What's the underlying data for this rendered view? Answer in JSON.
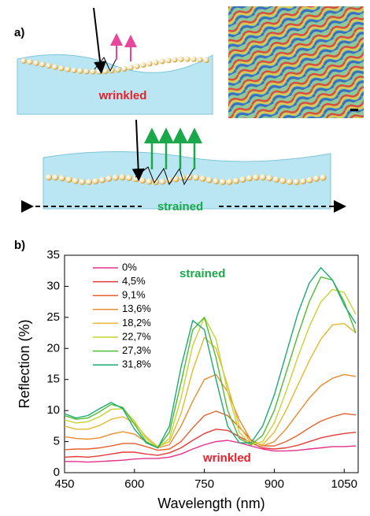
{
  "panel_a": {
    "label": "a)",
    "top_label": "wrinkled",
    "bottom_label": "strained"
  },
  "chart_data": {
    "type": "line",
    "panel_label": "b)",
    "x_label": "Wavelength (nm)",
    "y_label": "Reflection (%)",
    "xlim": [
      450,
      1080
    ],
    "xticks": [
      450,
      600,
      750,
      900,
      1050
    ],
    "ylim": [
      0,
      35
    ],
    "yticks": [
      0,
      5,
      10,
      15,
      20,
      25,
      30,
      35
    ],
    "legend": "upper left",
    "annotations": [
      {
        "text": "strained",
        "color": "#1aa84a"
      },
      {
        "text": "wrinkled",
        "color": "#e8202a"
      }
    ],
    "x": [
      450,
      475,
      500,
      525,
      550,
      575,
      600,
      625,
      650,
      675,
      700,
      725,
      750,
      775,
      800,
      825,
      850,
      875,
      900,
      925,
      950,
      975,
      1000,
      1025,
      1050,
      1075
    ],
    "series": [
      {
        "name": "0%",
        "color": "#e5308c",
        "values": [
          1.8,
          1.8,
          1.7,
          1.8,
          1.9,
          2.0,
          2.2,
          2.3,
          2.3,
          2.5,
          3.0,
          3.8,
          4.5,
          5.0,
          5.2,
          4.8,
          4.3,
          3.8,
          3.5,
          3.5,
          3.6,
          3.8,
          4.0,
          4.2,
          4.2,
          4.3
        ]
      },
      {
        "name": "4,5%",
        "color": "#e63a3a",
        "values": [
          2.5,
          2.6,
          2.5,
          2.7,
          3.0,
          3.3,
          3.3,
          3.0,
          2.8,
          3.2,
          4.0,
          5.2,
          6.3,
          7.0,
          6.8,
          5.8,
          4.8,
          4.0,
          3.8,
          4.0,
          4.4,
          5.0,
          5.6,
          6.0,
          6.3,
          6.5
        ]
      },
      {
        "name": "9,1%",
        "color": "#e8602e",
        "values": [
          3.7,
          3.8,
          3.8,
          4.0,
          4.3,
          4.7,
          4.7,
          4.2,
          3.6,
          3.8,
          5.0,
          7.2,
          9.2,
          9.9,
          9.2,
          7.3,
          5.3,
          4.3,
          4.3,
          5.0,
          6.0,
          7.2,
          8.3,
          9.0,
          9.5,
          9.3
        ]
      },
      {
        "name": "13,6%",
        "color": "#e88c30",
        "values": [
          5.8,
          5.5,
          5.4,
          5.6,
          6.2,
          6.6,
          6.2,
          5.0,
          4.0,
          4.5,
          7.5,
          11.5,
          15.0,
          15.8,
          13.0,
          8.5,
          5.2,
          4.3,
          5.0,
          7.0,
          9.5,
          12.0,
          14.0,
          15.2,
          15.8,
          15.5
        ]
      },
      {
        "name": "18,2%",
        "color": "#e6b830",
        "values": [
          7.5,
          7.0,
          7.0,
          7.6,
          8.6,
          9.0,
          8.0,
          5.8,
          4.2,
          5.0,
          9.5,
          16.5,
          21.8,
          20.0,
          14.0,
          7.5,
          4.8,
          4.5,
          6.5,
          10.0,
          14.0,
          18.0,
          21.5,
          23.8,
          24.0,
          22.5
        ]
      },
      {
        "name": "22,7%",
        "color": "#c4d430",
        "values": [
          8.5,
          8.0,
          8.2,
          9.0,
          10.2,
          10.3,
          8.3,
          5.5,
          4.0,
          5.5,
          12.0,
          20.5,
          25.0,
          21.5,
          13.0,
          6.5,
          4.5,
          5.0,
          8.0,
          13.0,
          18.5,
          23.5,
          27.5,
          29.5,
          29.0,
          25.5
        ]
      },
      {
        "name": "27,3%",
        "color": "#4cbc30",
        "values": [
          9.2,
          8.6,
          8.8,
          9.8,
          11.0,
          10.5,
          7.8,
          5.0,
          4.0,
          6.5,
          14.5,
          23.0,
          25.0,
          18.5,
          10.0,
          5.5,
          4.5,
          6.0,
          10.0,
          16.0,
          22.0,
          27.5,
          31.5,
          31.0,
          27.5,
          22.5
        ]
      },
      {
        "name": "31,8%",
        "color": "#1aaa72",
        "values": [
          9.5,
          8.8,
          9.2,
          10.3,
          11.3,
          10.3,
          7.0,
          4.8,
          4.0,
          7.5,
          17.0,
          24.5,
          23.0,
          15.0,
          7.5,
          4.8,
          4.8,
          7.5,
          12.5,
          19.0,
          25.5,
          30.5,
          33.0,
          31.0,
          27.0,
          24.0
        ]
      }
    ]
  }
}
